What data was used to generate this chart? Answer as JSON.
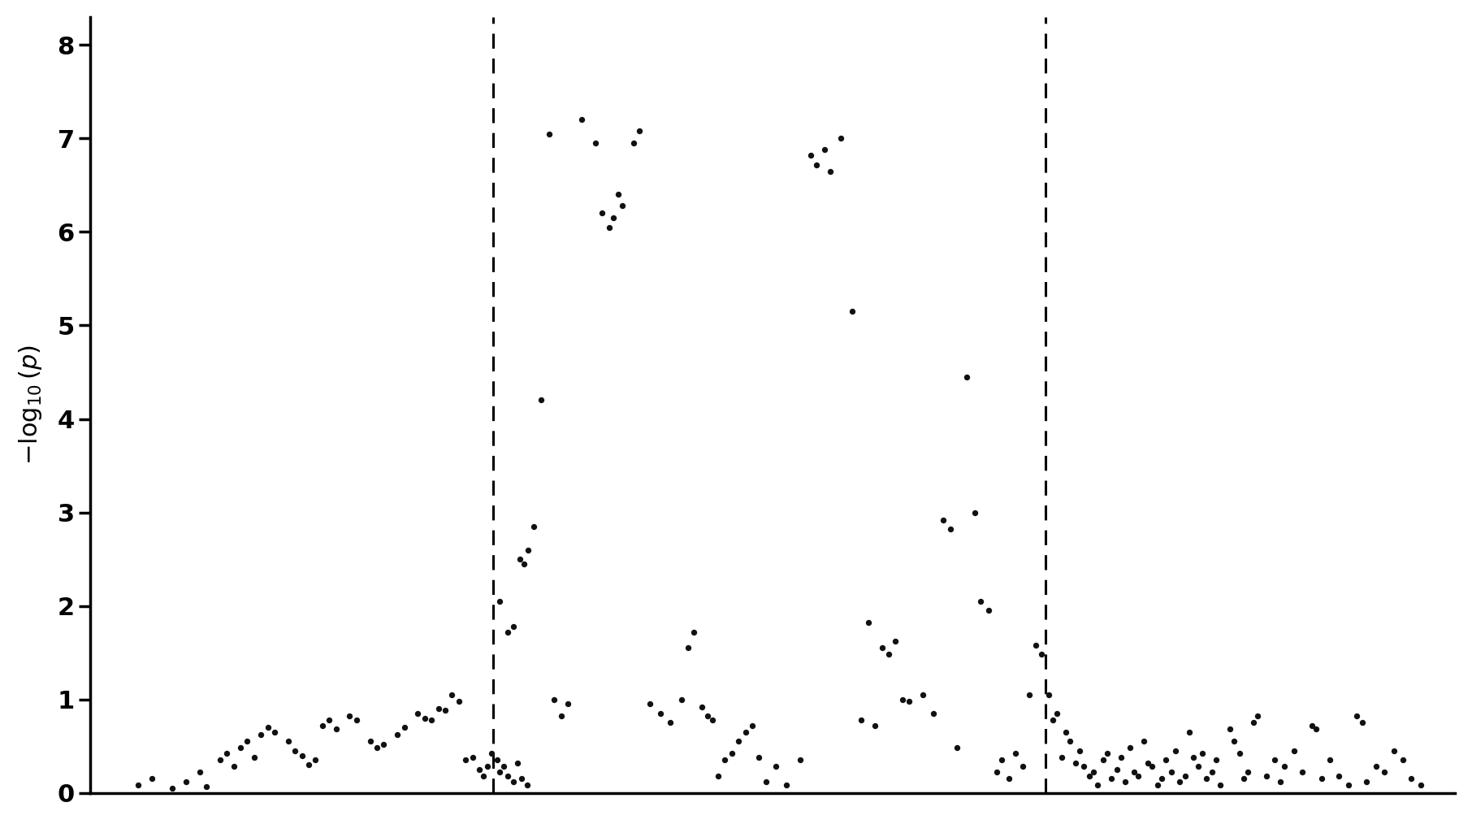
{
  "ylabel": "$-\\log_{10}(p)$",
  "ylim": [
    0,
    8.3
  ],
  "yticks": [
    0,
    1,
    2,
    3,
    4,
    5,
    6,
    7,
    8
  ],
  "vline1_x": 0.315,
  "vline2_x": 0.72,
  "background_color": "#ffffff",
  "dot_color": "#111111",
  "dot_size": 28,
  "figure_width": 18.12,
  "figure_height": 10.14,
  "dpi": 100,
  "xlim": [
    0.02,
    1.02
  ],
  "points": [
    [
      0.055,
      0.08
    ],
    [
      0.065,
      0.15
    ],
    [
      0.08,
      0.05
    ],
    [
      0.09,
      0.12
    ],
    [
      0.1,
      0.22
    ],
    [
      0.105,
      0.07
    ],
    [
      0.115,
      0.35
    ],
    [
      0.12,
      0.42
    ],
    [
      0.125,
      0.28
    ],
    [
      0.13,
      0.48
    ],
    [
      0.135,
      0.55
    ],
    [
      0.14,
      0.38
    ],
    [
      0.145,
      0.62
    ],
    [
      0.15,
      0.7
    ],
    [
      0.155,
      0.65
    ],
    [
      0.165,
      0.55
    ],
    [
      0.17,
      0.45
    ],
    [
      0.175,
      0.4
    ],
    [
      0.18,
      0.3
    ],
    [
      0.185,
      0.35
    ],
    [
      0.19,
      0.72
    ],
    [
      0.195,
      0.78
    ],
    [
      0.2,
      0.68
    ],
    [
      0.21,
      0.82
    ],
    [
      0.215,
      0.78
    ],
    [
      0.225,
      0.55
    ],
    [
      0.23,
      0.48
    ],
    [
      0.235,
      0.52
    ],
    [
      0.245,
      0.62
    ],
    [
      0.25,
      0.7
    ],
    [
      0.26,
      0.85
    ],
    [
      0.265,
      0.8
    ],
    [
      0.27,
      0.78
    ],
    [
      0.275,
      0.9
    ],
    [
      0.28,
      0.88
    ],
    [
      0.285,
      1.05
    ],
    [
      0.29,
      0.98
    ],
    [
      0.295,
      0.35
    ],
    [
      0.3,
      0.38
    ],
    [
      0.305,
      0.25
    ],
    [
      0.308,
      0.18
    ],
    [
      0.311,
      0.28
    ],
    [
      0.314,
      0.42
    ],
    [
      0.318,
      0.35
    ],
    [
      0.32,
      0.22
    ],
    [
      0.323,
      0.28
    ],
    [
      0.326,
      0.18
    ],
    [
      0.33,
      0.12
    ],
    [
      0.333,
      0.32
    ],
    [
      0.336,
      0.15
    ],
    [
      0.34,
      0.08
    ],
    [
      0.32,
      2.05
    ],
    [
      0.326,
      1.72
    ],
    [
      0.33,
      1.78
    ],
    [
      0.335,
      2.5
    ],
    [
      0.338,
      2.45
    ],
    [
      0.341,
      2.6
    ],
    [
      0.345,
      2.85
    ],
    [
      0.35,
      4.2
    ],
    [
      0.356,
      7.05
    ],
    [
      0.36,
      1.0
    ],
    [
      0.365,
      0.82
    ],
    [
      0.37,
      0.95
    ],
    [
      0.38,
      7.2
    ],
    [
      0.39,
      6.95
    ],
    [
      0.395,
      6.2
    ],
    [
      0.4,
      6.05
    ],
    [
      0.403,
      6.15
    ],
    [
      0.407,
      6.4
    ],
    [
      0.41,
      6.28
    ],
    [
      0.418,
      6.95
    ],
    [
      0.422,
      7.08
    ],
    [
      0.43,
      0.95
    ],
    [
      0.438,
      0.85
    ],
    [
      0.445,
      0.75
    ],
    [
      0.453,
      1.0
    ],
    [
      0.458,
      1.55
    ],
    [
      0.462,
      1.72
    ],
    [
      0.468,
      0.92
    ],
    [
      0.472,
      0.82
    ],
    [
      0.476,
      0.78
    ],
    [
      0.48,
      0.18
    ],
    [
      0.485,
      0.35
    ],
    [
      0.49,
      0.42
    ],
    [
      0.495,
      0.55
    ],
    [
      0.5,
      0.65
    ],
    [
      0.505,
      0.72
    ],
    [
      0.51,
      0.38
    ],
    [
      0.515,
      0.12
    ],
    [
      0.522,
      0.28
    ],
    [
      0.53,
      0.08
    ],
    [
      0.54,
      0.35
    ],
    [
      0.548,
      6.82
    ],
    [
      0.552,
      6.72
    ],
    [
      0.558,
      6.88
    ],
    [
      0.562,
      6.65
    ],
    [
      0.57,
      7.0
    ],
    [
      0.578,
      5.15
    ],
    [
      0.585,
      0.78
    ],
    [
      0.59,
      1.82
    ],
    [
      0.595,
      0.72
    ],
    [
      0.6,
      1.55
    ],
    [
      0.605,
      1.48
    ],
    [
      0.61,
      1.62
    ],
    [
      0.615,
      1.0
    ],
    [
      0.62,
      0.98
    ],
    [
      0.63,
      1.05
    ],
    [
      0.638,
      0.85
    ],
    [
      0.645,
      2.92
    ],
    [
      0.65,
      2.82
    ],
    [
      0.655,
      0.48
    ],
    [
      0.662,
      4.45
    ],
    [
      0.668,
      3.0
    ],
    [
      0.672,
      2.05
    ],
    [
      0.678,
      1.95
    ],
    [
      0.684,
      0.22
    ],
    [
      0.688,
      0.35
    ],
    [
      0.693,
      0.15
    ],
    [
      0.698,
      0.42
    ],
    [
      0.703,
      0.28
    ],
    [
      0.708,
      1.05
    ],
    [
      0.713,
      1.58
    ],
    [
      0.717,
      1.48
    ],
    [
      0.722,
      1.05
    ],
    [
      0.725,
      0.78
    ],
    [
      0.728,
      0.85
    ],
    [
      0.732,
      0.38
    ],
    [
      0.735,
      0.65
    ],
    [
      0.738,
      0.55
    ],
    [
      0.742,
      0.32
    ],
    [
      0.745,
      0.45
    ],
    [
      0.748,
      0.28
    ],
    [
      0.752,
      0.18
    ],
    [
      0.755,
      0.22
    ],
    [
      0.758,
      0.08
    ],
    [
      0.762,
      0.35
    ],
    [
      0.765,
      0.42
    ],
    [
      0.768,
      0.15
    ],
    [
      0.772,
      0.25
    ],
    [
      0.775,
      0.38
    ],
    [
      0.778,
      0.12
    ],
    [
      0.782,
      0.48
    ],
    [
      0.785,
      0.22
    ],
    [
      0.788,
      0.18
    ],
    [
      0.792,
      0.55
    ],
    [
      0.795,
      0.32
    ],
    [
      0.798,
      0.28
    ],
    [
      0.802,
      0.08
    ],
    [
      0.805,
      0.15
    ],
    [
      0.808,
      0.35
    ],
    [
      0.812,
      0.22
    ],
    [
      0.815,
      0.45
    ],
    [
      0.818,
      0.12
    ],
    [
      0.822,
      0.18
    ],
    [
      0.825,
      0.65
    ],
    [
      0.828,
      0.38
    ],
    [
      0.832,
      0.28
    ],
    [
      0.835,
      0.42
    ],
    [
      0.838,
      0.15
    ],
    [
      0.842,
      0.22
    ],
    [
      0.845,
      0.35
    ],
    [
      0.848,
      0.08
    ],
    [
      0.855,
      0.68
    ],
    [
      0.858,
      0.55
    ],
    [
      0.862,
      0.42
    ],
    [
      0.865,
      0.15
    ],
    [
      0.868,
      0.22
    ],
    [
      0.872,
      0.75
    ],
    [
      0.875,
      0.82
    ],
    [
      0.882,
      0.18
    ],
    [
      0.888,
      0.35
    ],
    [
      0.892,
      0.12
    ],
    [
      0.895,
      0.28
    ],
    [
      0.902,
      0.45
    ],
    [
      0.908,
      0.22
    ],
    [
      0.915,
      0.72
    ],
    [
      0.918,
      0.68
    ],
    [
      0.922,
      0.15
    ],
    [
      0.928,
      0.35
    ],
    [
      0.935,
      0.18
    ],
    [
      0.942,
      0.08
    ],
    [
      0.948,
      0.82
    ],
    [
      0.952,
      0.75
    ],
    [
      0.955,
      0.12
    ],
    [
      0.962,
      0.28
    ],
    [
      0.968,
      0.22
    ],
    [
      0.975,
      0.45
    ],
    [
      0.982,
      0.35
    ],
    [
      0.988,
      0.15
    ],
    [
      0.995,
      0.08
    ]
  ]
}
